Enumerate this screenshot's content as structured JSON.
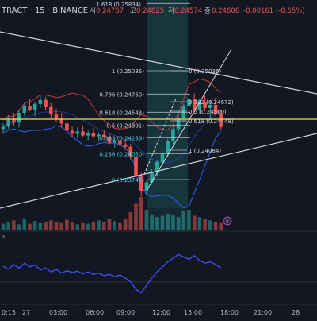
{
  "header": {
    "symbol": "TRACT · 15 · BINANCE",
    "ohlc": [
      {
        "label": "시",
        "value": "0.24767"
      },
      {
        "label": "고",
        "value": "0.24825"
      },
      {
        "label": "저",
        "value": "0.24574"
      },
      {
        "label": "종",
        "value": "0.24606"
      }
    ],
    "change": "-0.00161 (-0.65%)"
  },
  "colors": {
    "background": "#131722",
    "up": "#26a69a",
    "down": "#ef5350",
    "trendline": "#d1d4dc",
    "yellow_line": "#f0e442",
    "bb_upper": "#c2393d",
    "bb_lower": "#2962ff",
    "fib_label": "#d1d4dc",
    "fib_accent": "#4dd0e1",
    "highlight_band": "#26a69a",
    "rsi_line": "#3f51ff"
  },
  "fib_levels": [
    {
      "ratio": "1.618",
      "text": "1.618 (0.25834)",
      "price": 0.25834
    },
    {
      "ratio": "1",
      "text": "1 (0.25036)",
      "price": 0.25036
    },
    {
      "ratio": "0.786",
      "text": "0.786 (0.24760)",
      "price": 0.2476
    },
    {
      "ratio": "0.618",
      "text": "0.618 (0.24543)",
      "price": 0.24543
    },
    {
      "ratio": "0.5",
      "text": "0.5 (0.24391)",
      "price": 0.24391
    },
    {
      "ratio": "0.382",
      "text": "0.382 (0.24239)",
      "price": 0.24239
    },
    {
      "ratio": "0.236",
      "text": "0.236 (0.24050)",
      "price": 0.2405
    },
    {
      "ratio": "0",
      "text": "0 (0.23745)",
      "price": 0.23745
    }
  ],
  "fib_levels_right": [
    {
      "text": "0 (0.25036)"
    },
    {
      "text": "0.382 (0.24672)"
    },
    {
      "text": "0.5 (0.24560)"
    },
    {
      "text": "0.618 (0.24448)"
    },
    {
      "text": "1 (0.24084)"
    }
  ],
  "x_axis": {
    "ticks": [
      "0:15",
      "27",
      "03:00",
      "06:00",
      "09:00",
      "12:00",
      "15:00",
      "18:00",
      "21:00",
      "28"
    ]
  },
  "chart_data": {
    "type": "candlestick",
    "interval": "15",
    "exchange": "BINANCE",
    "y_range": [
      0.236,
      0.26
    ],
    "last_close": 0.24606,
    "candles": [
      {
        "o": 0.2458,
        "h": 0.2465,
        "l": 0.2452,
        "c": 0.2461
      },
      {
        "o": 0.2461,
        "h": 0.2474,
        "l": 0.2458,
        "c": 0.247
      },
      {
        "o": 0.247,
        "h": 0.2478,
        "l": 0.2462,
        "c": 0.2466
      },
      {
        "o": 0.2466,
        "h": 0.2481,
        "l": 0.246,
        "c": 0.2478
      },
      {
        "o": 0.2478,
        "h": 0.249,
        "l": 0.2474,
        "c": 0.2486
      },
      {
        "o": 0.2486,
        "h": 0.2495,
        "l": 0.248,
        "c": 0.2482
      },
      {
        "o": 0.2482,
        "h": 0.2492,
        "l": 0.2474,
        "c": 0.2489
      },
      {
        "o": 0.2489,
        "h": 0.2499,
        "l": 0.2484,
        "c": 0.2494
      },
      {
        "o": 0.2494,
        "h": 0.2498,
        "l": 0.2482,
        "c": 0.2485
      },
      {
        "o": 0.2485,
        "h": 0.249,
        "l": 0.2472,
        "c": 0.2476
      },
      {
        "o": 0.2476,
        "h": 0.2483,
        "l": 0.2466,
        "c": 0.247
      },
      {
        "o": 0.247,
        "h": 0.2478,
        "l": 0.246,
        "c": 0.2465
      },
      {
        "o": 0.2465,
        "h": 0.247,
        "l": 0.2452,
        "c": 0.2456
      },
      {
        "o": 0.2456,
        "h": 0.2462,
        "l": 0.2448,
        "c": 0.2452
      },
      {
        "o": 0.2452,
        "h": 0.246,
        "l": 0.2446,
        "c": 0.2455
      },
      {
        "o": 0.2455,
        "h": 0.2462,
        "l": 0.2448,
        "c": 0.245
      },
      {
        "o": 0.245,
        "h": 0.2456,
        "l": 0.2444,
        "c": 0.2453
      },
      {
        "o": 0.2453,
        "h": 0.2459,
        "l": 0.2447,
        "c": 0.2449
      },
      {
        "o": 0.2449,
        "h": 0.2454,
        "l": 0.2442,
        "c": 0.2451
      },
      {
        "o": 0.2451,
        "h": 0.2457,
        "l": 0.2445,
        "c": 0.2448
      },
      {
        "o": 0.2448,
        "h": 0.2452,
        "l": 0.2438,
        "c": 0.2441
      },
      {
        "o": 0.2441,
        "h": 0.2447,
        "l": 0.2435,
        "c": 0.2444
      },
      {
        "o": 0.2444,
        "h": 0.2449,
        "l": 0.2436,
        "c": 0.2439
      },
      {
        "o": 0.2439,
        "h": 0.2445,
        "l": 0.2432,
        "c": 0.2436
      },
      {
        "o": 0.2436,
        "h": 0.244,
        "l": 0.242,
        "c": 0.2424
      },
      {
        "o": 0.2424,
        "h": 0.2428,
        "l": 0.2395,
        "c": 0.2399
      },
      {
        "o": 0.2399,
        "h": 0.2404,
        "l": 0.23745,
        "c": 0.2381
      },
      {
        "o": 0.2381,
        "h": 0.2395,
        "l": 0.2377,
        "c": 0.2392
      },
      {
        "o": 0.2392,
        "h": 0.2408,
        "l": 0.2389,
        "c": 0.2405
      },
      {
        "o": 0.2405,
        "h": 0.242,
        "l": 0.24,
        "c": 0.2417
      },
      {
        "o": 0.2417,
        "h": 0.2431,
        "l": 0.2412,
        "c": 0.2427
      },
      {
        "o": 0.2427,
        "h": 0.2446,
        "l": 0.2423,
        "c": 0.2443
      },
      {
        "o": 0.2443,
        "h": 0.2462,
        "l": 0.2438,
        "c": 0.2458
      },
      {
        "o": 0.2458,
        "h": 0.2476,
        "l": 0.2452,
        "c": 0.2472
      },
      {
        "o": 0.2472,
        "h": 0.249,
        "l": 0.2466,
        "c": 0.2486
      },
      {
        "o": 0.2486,
        "h": 0.25036,
        "l": 0.248,
        "c": 0.2495
      },
      {
        "o": 0.2495,
        "h": 0.2502,
        "l": 0.2476,
        "c": 0.2481
      },
      {
        "o": 0.2481,
        "h": 0.2496,
        "l": 0.2476,
        "c": 0.2492
      },
      {
        "o": 0.2492,
        "h": 0.25,
        "l": 0.248,
        "c": 0.2484
      },
      {
        "o": 0.2484,
        "h": 0.2494,
        "l": 0.247,
        "c": 0.2488
      },
      {
        "o": 0.2488,
        "h": 0.2497,
        "l": 0.2474,
        "c": 0.24767
      },
      {
        "o": 0.24767,
        "h": 0.24825,
        "l": 0.24574,
        "c": 0.24606
      }
    ],
    "volume": [
      0.2,
      0.25,
      0.3,
      0.18,
      0.35,
      0.2,
      0.28,
      0.22,
      0.24,
      0.3,
      0.26,
      0.22,
      0.32,
      0.24,
      0.18,
      0.22,
      0.2,
      0.26,
      0.3,
      0.24,
      0.34,
      0.28,
      0.22,
      0.36,
      0.55,
      0.8,
      1.0,
      0.62,
      0.48,
      0.4,
      0.44,
      0.5,
      0.46,
      0.4,
      0.58,
      0.62,
      0.44,
      0.4,
      0.36,
      0.3,
      0.26,
      0.22
    ],
    "rsi": [
      55,
      50,
      58,
      52,
      60,
      54,
      57,
      49,
      52,
      46,
      50,
      44,
      48,
      45,
      47,
      43,
      46,
      42,
      44,
      40,
      42,
      38,
      41,
      36,
      30,
      18,
      12,
      24,
      36,
      46,
      54,
      62,
      68,
      74,
      70,
      66,
      72,
      64,
      60,
      62,
      58,
      52
    ]
  }
}
